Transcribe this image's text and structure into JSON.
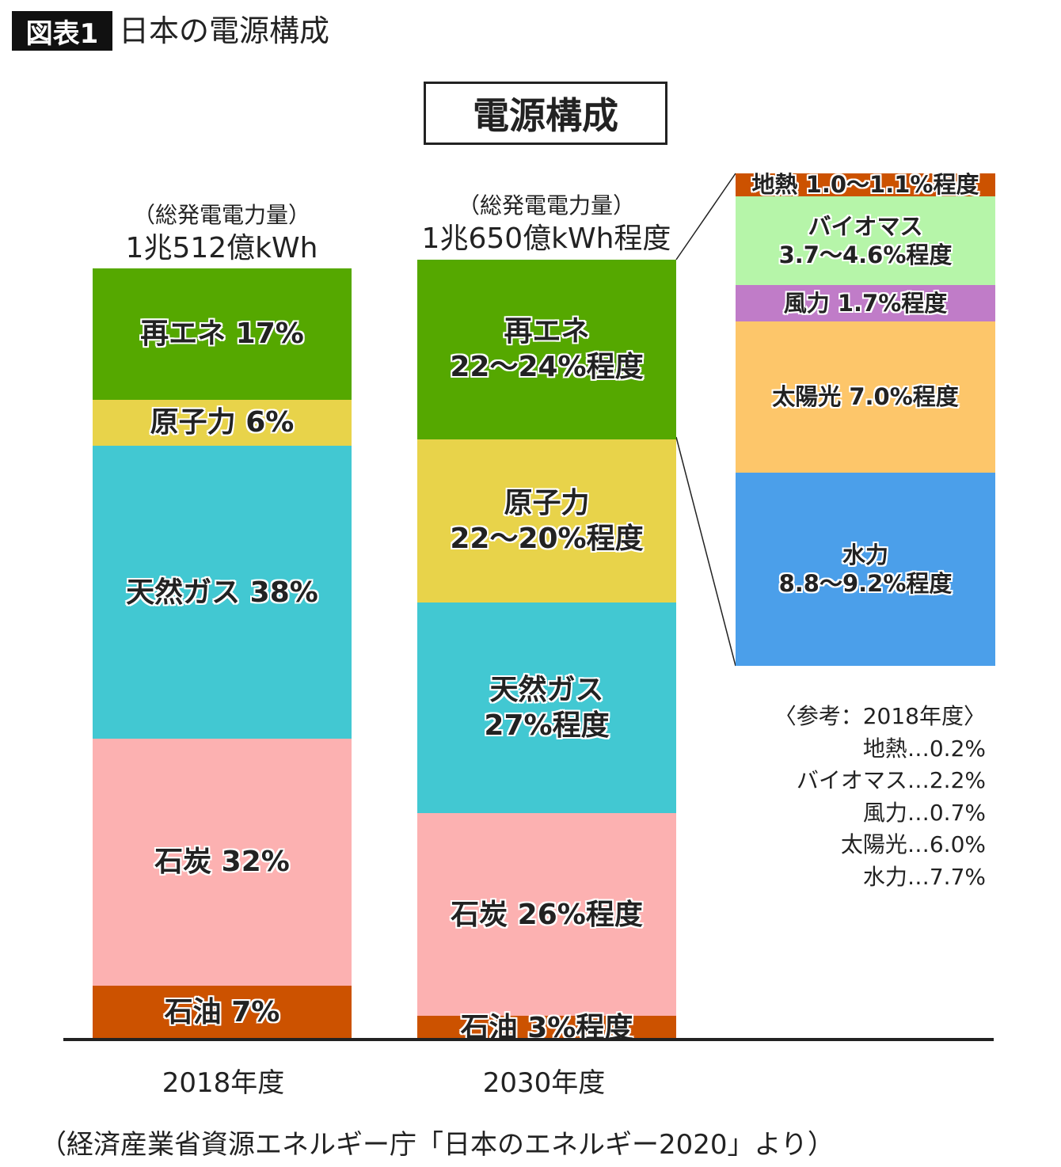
{
  "header": {
    "tag": "図表1",
    "title": "日本の電源構成"
  },
  "chart_data": {
    "type": "stacked-bar",
    "title": "電源構成",
    "categories": [
      "2018年度",
      "2030年度"
    ],
    "totals": [
      {
        "label": "（総発電電力量）",
        "value": "1兆512億kWh"
      },
      {
        "label": "（総発電電力量）",
        "value": "1兆650億kWh程度"
      }
    ],
    "bars": [
      {
        "category": "2018年度",
        "segments": [
          {
            "name": "再エネ",
            "value": 17,
            "label": "再エネ 17%",
            "color": "#55a800"
          },
          {
            "name": "原子力",
            "value": 6,
            "label": "原子力 6%",
            "color": "#e8d34a"
          },
          {
            "name": "天然ガス",
            "value": 38,
            "label": "天然ガス 38%",
            "color": "#42c8d2"
          },
          {
            "name": "石炭",
            "value": 32,
            "label": "石炭 32%",
            "color": "#fcb1b1"
          },
          {
            "name": "石油",
            "value": 7,
            "label": "石油 7%",
            "color": "#cc5200"
          }
        ]
      },
      {
        "category": "2030年度",
        "segments": [
          {
            "name": "再エネ",
            "value_range": [
              22,
              24
            ],
            "label": "再エネ\n22～24%程度",
            "color": "#55a800"
          },
          {
            "name": "原子力",
            "value_range": [
              22,
              20
            ],
            "label": "原子力\n22～20%程度",
            "color": "#e8d34a"
          },
          {
            "name": "天然ガス",
            "value_range": [
              27,
              27
            ],
            "label": "天然ガス\n27%程度",
            "color": "#42c8d2"
          },
          {
            "name": "石炭",
            "value_range": [
              26,
              26
            ],
            "label": "石炭 26%程度",
            "color": "#fcb1b1"
          },
          {
            "name": "石油",
            "value_range": [
              3,
              3
            ],
            "label": "石油 3%程度",
            "color": "#cc5200"
          }
        ]
      }
    ],
    "breakdown": {
      "of": "再エネ 2030年度",
      "segments": [
        {
          "name": "地熱",
          "value_range": [
            1.0,
            1.1
          ],
          "label": "地熱 1.0～1.1%程度",
          "color": "#cc5200"
        },
        {
          "name": "バイオマス",
          "value_range": [
            3.7,
            4.6
          ],
          "label": "バイオマス\n3.7～4.6%程度",
          "color": "#b6f5a9"
        },
        {
          "name": "風力",
          "value_range": [
            1.7,
            1.7
          ],
          "label": "風力 1.7%程度",
          "color": "#c07cc8"
        },
        {
          "name": "太陽光",
          "value_range": [
            7.0,
            7.0
          ],
          "label": "太陽光 7.0%程度",
          "color": "#fdc66a"
        },
        {
          "name": "水力",
          "value_range": [
            8.8,
            9.2
          ],
          "label": "水力\n8.8～9.2%程度",
          "color": "#4b9fea"
        }
      ]
    },
    "reference": {
      "title": "〈参考：2018年度〉",
      "items": [
        "地熱…0.2%",
        "バイオマス…2.2%",
        "風力…0.7%",
        "太陽光…6.0%",
        "水力…7.7%"
      ]
    }
  },
  "source": "（経済産業省資源エネルギー庁「日本のエネルギー2020」より）"
}
